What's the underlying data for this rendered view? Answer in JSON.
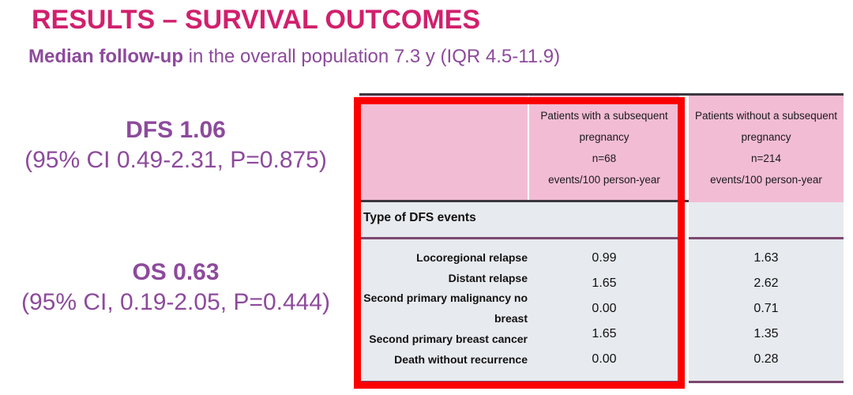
{
  "slide": {
    "title": "RESULTS – SURVIVAL OUTCOMES",
    "subtitle_bold": "Median follow-up",
    "subtitle_rest": " in the overall population 7.3 y (IQR 4.5-11.9)"
  },
  "stats": {
    "dfs_headline": "DFS 1.06",
    "dfs_detail": "(95% CI 0.49-2.31, P=0.875)",
    "os_headline": "OS 0.63",
    "os_detail": "(95% CI, 0.19-2.05, P=0.444)"
  },
  "table": {
    "col_with": {
      "l1": "Patients with a subsequent",
      "l2": "pregnancy",
      "l3": "n=68",
      "l4": "events/100 person-year"
    },
    "col_without": {
      "l1": "Patients without a subsequent",
      "l2": "pregnancy",
      "l3": "n=214",
      "l4": "events/100 person-year"
    },
    "section_header": "Type of DFS events",
    "rows": [
      {
        "label": "Locoregional relapse",
        "with": "0.99",
        "without": "1.63"
      },
      {
        "label": "Distant relapse",
        "with": "1.65",
        "without": "2.62"
      },
      {
        "label": "Second primary malignancy no",
        "label2": "breast",
        "with": "0.00",
        "without": "0.71"
      },
      {
        "label": "Second primary breast cancer",
        "with": "1.65",
        "without": "1.35"
      },
      {
        "label": "Death without recurrence",
        "with": "0.00",
        "without": "0.28"
      }
    ]
  },
  "colors": {
    "title": "#d1206d",
    "purple_text": "#8d4a9c",
    "header_pink": "#f2bcd5",
    "body_gray": "#e7eaee",
    "plum_border": "#7b4870",
    "dark_border": "#3c3740",
    "highlight_red": "#fc0000"
  }
}
